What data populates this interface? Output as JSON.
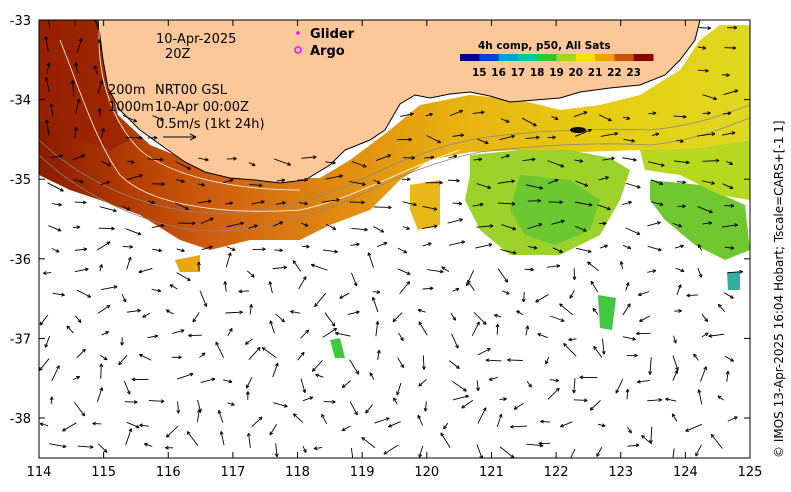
{
  "map": {
    "lon_ticks": [
      "114",
      "115",
      "116",
      "117",
      "118",
      "119",
      "120",
      "121",
      "122",
      "123",
      "124",
      "125"
    ],
    "lat_ticks": [
      "-33",
      "-34",
      "-35",
      "-36",
      "-37",
      "-38"
    ]
  },
  "annotations": {
    "date": "10-Apr-2025",
    "time": "20Z",
    "isobath_200": "200m",
    "isobath_1000": "1000m",
    "product": "NRT00 GSL",
    "product_time": "10-Apr 00:00Z",
    "scale": "0.5m/s (1kt 24h)"
  },
  "legend": {
    "glider_label": "Glider",
    "argo_label": "Argo",
    "glider_color": "#ff00ff",
    "argo_color": "#ff00ff"
  },
  "colorbar": {
    "title": "4h comp, p50, All Sats",
    "ticks": [
      "15",
      "16",
      "17",
      "18",
      "19",
      "20",
      "21",
      "22",
      "23"
    ],
    "colors": [
      "#00008b",
      "#0040d0",
      "#00a0e0",
      "#00c8a0",
      "#30c830",
      "#a0d820",
      "#f0e000",
      "#f0a000",
      "#d05000",
      "#8b0000"
    ]
  },
  "colors": {
    "land": "#fcc89a",
    "background": "#ffffff"
  },
  "credit": "© IMOS 13-Apr-2025 16:04 Hobart; Tscale=CARS+[-1 1]"
}
